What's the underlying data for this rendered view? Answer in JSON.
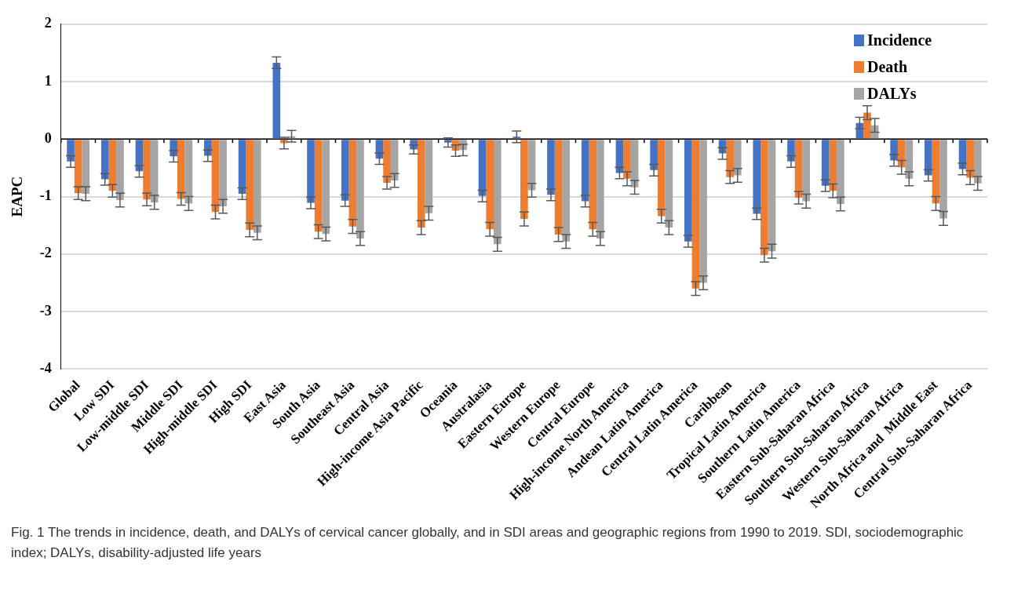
{
  "chart_data": {
    "type": "bar",
    "ylabel": "EAPC",
    "categories": [
      "Global",
      "Low SDI",
      "Low-middle SDI",
      "Middle SDI",
      "High-middle SDI",
      "High SDI",
      "East Asia",
      "South Asia",
      "Southeast Asia",
      "Central Asia",
      "High-income Asia Pacific",
      "Oceania",
      "Australasia",
      "Eastern Europe",
      "Western Europe",
      "Central Europe",
      "High-income North America",
      "Andean Latin America",
      "Central Latin America",
      "Caribbean",
      "Tropical Latin America",
      "Southern Latin America",
      "Eastern Sub-Saharan Africa",
      "Southern Sub-Saharan Africa",
      "Western Sub-Saharan Africa",
      "North Africa and  Middle East",
      "Central Sub-Saharan Africa"
    ],
    "series": [
      {
        "name": "Incidence",
        "color": "#4472c4",
        "values": [
          -0.39,
          -0.7,
          -0.56,
          -0.3,
          -0.29,
          -0.95,
          1.33,
          -1.11,
          -1.07,
          -0.34,
          -0.18,
          -0.06,
          -0.99,
          0.04,
          -0.97,
          -1.08,
          -0.59,
          -0.54,
          -1.78,
          -0.25,
          -1.3,
          -0.39,
          -0.81,
          0.28,
          -0.37,
          -0.63,
          -0.52
        ],
        "errors": [
          0.1,
          0.1,
          0.1,
          0.1,
          0.1,
          0.1,
          0.1,
          0.1,
          0.1,
          0.1,
          0.08,
          0.08,
          0.1,
          0.1,
          0.1,
          0.1,
          0.1,
          0.1,
          0.1,
          0.1,
          0.1,
          0.1,
          0.1,
          0.1,
          0.1,
          0.1,
          0.1
        ]
      },
      {
        "name": "Death",
        "color": "#ed7d31",
        "values": [
          -0.94,
          -0.9,
          -1.05,
          -1.04,
          -1.27,
          -1.58,
          -0.07,
          -1.61,
          -1.52,
          -0.76,
          -1.54,
          -0.2,
          -1.57,
          -1.39,
          -1.66,
          -1.57,
          -0.69,
          -1.34,
          -2.6,
          -0.66,
          -2.02,
          -1.02,
          -0.9,
          0.46,
          -0.49,
          -1.12,
          -0.67
        ],
        "errors": [
          0.11,
          0.11,
          0.11,
          0.11,
          0.12,
          0.12,
          0.1,
          0.12,
          0.12,
          0.11,
          0.12,
          0.1,
          0.12,
          0.12,
          0.12,
          0.12,
          0.12,
          0.12,
          0.12,
          0.11,
          0.12,
          0.11,
          0.12,
          0.12,
          0.12,
          0.12,
          0.12
        ]
      },
      {
        "name": "DALYs",
        "color": "#a5a5a5",
        "values": [
          -0.95,
          -1.06,
          -1.1,
          -1.12,
          -1.17,
          -1.63,
          0.05,
          -1.65,
          -1.73,
          -0.72,
          -1.29,
          -0.19,
          -1.83,
          -0.89,
          -1.78,
          -1.73,
          -0.84,
          -1.54,
          -2.5,
          -0.63,
          -1.95,
          -1.08,
          -1.13,
          0.24,
          -0.69,
          -1.38,
          -0.77
        ],
        "errors": [
          0.12,
          0.12,
          0.12,
          0.12,
          0.12,
          0.12,
          0.1,
          0.12,
          0.12,
          0.12,
          0.12,
          0.1,
          0.12,
          0.12,
          0.12,
          0.12,
          0.12,
          0.12,
          0.12,
          0.12,
          0.12,
          0.12,
          0.12,
          0.12,
          0.12,
          0.12,
          0.12
        ]
      }
    ],
    "ylim": [
      -4,
      2
    ],
    "yticks": [
      -4,
      -3,
      -2,
      -1,
      0,
      1,
      2
    ],
    "grid": "y",
    "legend": "top right",
    "annotations": [
      "Fig. 1 The trends in incidence, death, and DALYs of cervical cancer globally, and in SDI areas and geographic regions from 1990 to 2019. SDI, sociodemographic index; DALYs, disability-adjusted life years"
    ]
  }
}
